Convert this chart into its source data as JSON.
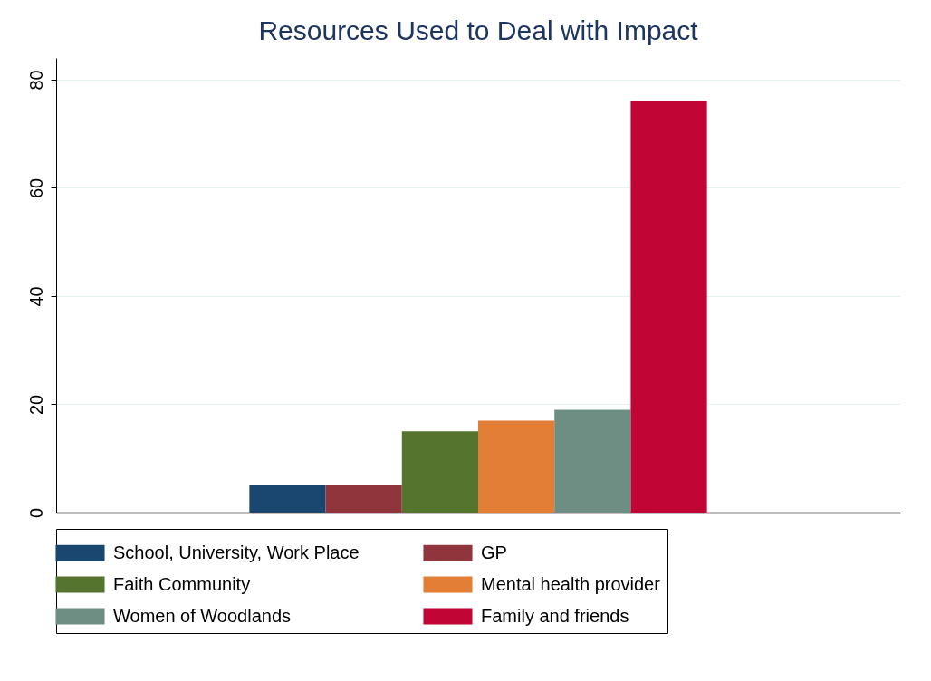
{
  "chart_data": {
    "type": "bar",
    "title": "Resources Used to Deal with Impact",
    "categories": [
      null
    ],
    "series": [
      {
        "name": "School, University, Work Place",
        "color": "#1a476f",
        "values": [
          5
        ]
      },
      {
        "name": "GP",
        "color": "#90353b",
        "values": [
          5
        ]
      },
      {
        "name": "Faith Community",
        "color": "#55752f",
        "values": [
          15
        ]
      },
      {
        "name": "Mental health provider",
        "color": "#e37e37",
        "values": [
          17
        ]
      },
      {
        "name": "Women of Woodlands",
        "color": "#6e8e84",
        "values": [
          19
        ]
      },
      {
        "name": "Family and friends",
        "color": "#c10534",
        "values": [
          76
        ]
      }
    ],
    "ylim": [
      0,
      84
    ],
    "yticks": [
      0,
      20,
      40,
      60,
      80
    ],
    "grid": "y",
    "legend": "bottom",
    "tick_labels": "y"
  }
}
